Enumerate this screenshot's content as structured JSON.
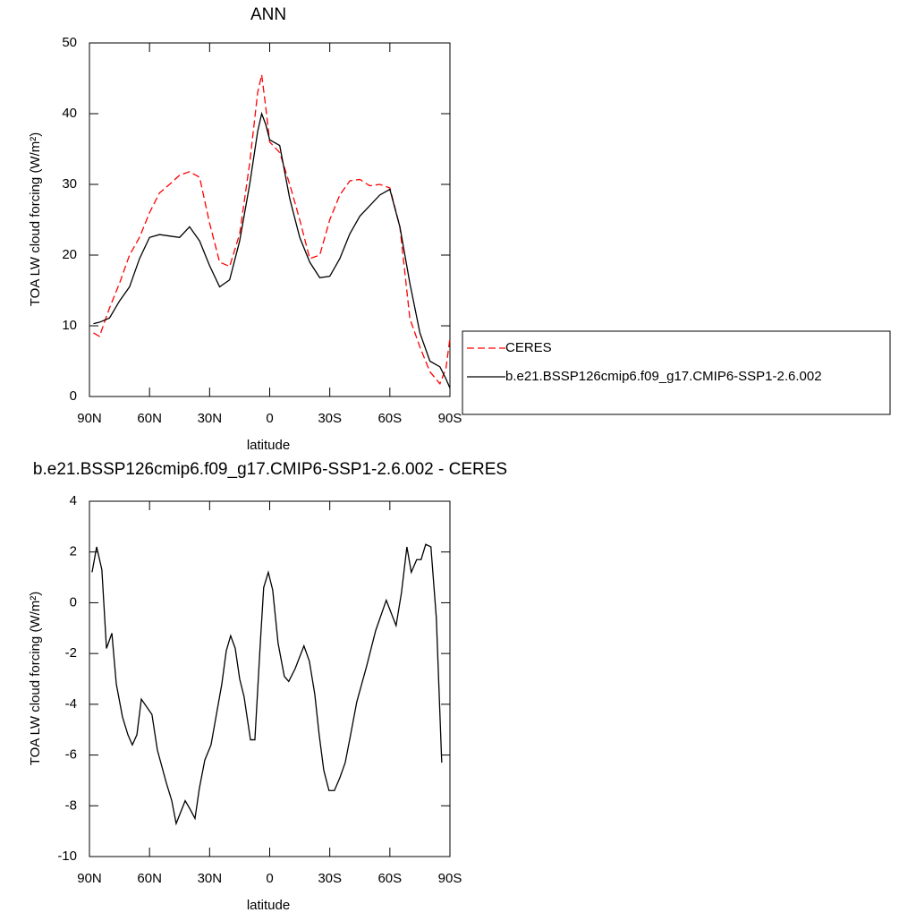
{
  "chart_data": [
    {
      "type": "line",
      "title": "ANN",
      "x_label": "latitude",
      "y_label": "TOA LW cloud forcing (W/m²)",
      "xlim": [
        90,
        -90
      ],
      "xticks": [
        {
          "value": 90,
          "label": "90N"
        },
        {
          "value": 60,
          "label": "60N"
        },
        {
          "value": 30,
          "label": "30N"
        },
        0,
        {
          "value": -30,
          "label": "30S"
        },
        {
          "value": -60,
          "label": "60S"
        },
        {
          "value": -90,
          "label": "90S"
        }
      ],
      "ylim": [
        0,
        50
      ],
      "yticks": [
        0,
        10,
        20,
        30,
        40,
        50
      ],
      "legend": "right",
      "x": [
        88,
        85,
        80,
        75,
        70,
        65,
        60,
        55,
        50,
        45,
        40,
        35,
        30,
        25,
        20,
        15,
        10,
        6,
        4,
        2,
        0,
        -5,
        -10,
        -15,
        -20,
        -25,
        -30,
        -35,
        -40,
        -45,
        -50,
        -55,
        -60,
        -65,
        -70,
        -75,
        -80,
        -85,
        -88,
        -90
      ],
      "series": [
        {
          "name": "CERES",
          "color": "#ff0000",
          "line_style": "dashed",
          "values": [
            9,
            8.5,
            12.5,
            16,
            20,
            22.5,
            26,
            28.8,
            30,
            31.3,
            31.8,
            31,
            24.5,
            19,
            18.4,
            23,
            33,
            43,
            45.5,
            41,
            36,
            34.5,
            30,
            25,
            19.5,
            20,
            25,
            28.5,
            30.5,
            30.7,
            29.8,
            30,
            29.5,
            24,
            11,
            7,
            3.5,
            1.8,
            4,
            8.2
          ]
        },
        {
          "name": "b.e21.BSSP126cmip6.f09_g17.CMIP6-SSP1-2.6.002",
          "color": "#000000",
          "line_style": "solid",
          "values": [
            10.3,
            10.5,
            11.1,
            13.5,
            15.5,
            19.5,
            22.5,
            22.9,
            22.7,
            22.5,
            24,
            22,
            18.5,
            15.5,
            16.5,
            22,
            30,
            37.5,
            40,
            38.5,
            36.3,
            35.5,
            28,
            22.5,
            19,
            16.8,
            17,
            19.5,
            23,
            25.5,
            27,
            28.5,
            29.3,
            24,
            16,
            9,
            5,
            4.2,
            2.5,
            1.2
          ]
        }
      ]
    },
    {
      "type": "line",
      "title": "b.e21.BSSP126cmip6.f09_g17.CMIP6-SSP1-2.6.002 - CERES",
      "x_label": "latitude",
      "y_label": "TOA LW cloud forcing (W/m²)",
      "xlim": [
        90,
        -90
      ],
      "xticks": [
        {
          "value": 90,
          "label": "90N"
        },
        {
          "value": 60,
          "label": "60N"
        },
        {
          "value": 30,
          "label": "30N"
        },
        0,
        {
          "value": -30,
          "label": "30S"
        },
        {
          "value": -60,
          "label": "60S"
        },
        {
          "value": -90,
          "label": "90S"
        }
      ],
      "ylim": [
        -10,
        4
      ],
      "yticks": [
        -10,
        -8,
        -6,
        -4,
        -2,
        0,
        2,
        4
      ],
      "x": [
        88.7,
        86.4,
        83.8,
        81.5,
        78.8,
        76.6,
        73.5,
        70.8,
        68.6,
        66.3,
        64.1,
        58.8,
        56.1,
        51.6,
        48.9,
        46.7,
        42.2,
        40,
        37.3,
        35.1,
        32.4,
        29.3,
        23.9,
        21.7,
        19.5,
        17.2,
        15,
        12.8,
        9.6,
        7.4,
        4.7,
        3,
        0.7,
        -1.5,
        -4.2,
        -7.3,
        -9.5,
        -12.7,
        -17.1,
        -19.8,
        -22.5,
        -24.7,
        -27,
        -29.6,
        -32.3,
        -35,
        -37.7,
        -40.4,
        -43.5,
        -48.4,
        -52.9,
        -58.2,
        -63.1,
        -65.8,
        -68.5,
        -70.7,
        -73.4,
        -75.6,
        -77.9,
        -80.5,
        -83.2,
        -85.9
      ],
      "series": [
        {
          "color": "#000000",
          "line_style": "solid",
          "values": [
            1.2,
            2.2,
            1.3,
            -1.8,
            -1.2,
            -3.2,
            -4.5,
            -5.2,
            -5.6,
            -5.2,
            -3.8,
            -4.4,
            -5.8,
            -7.1,
            -7.8,
            -8.7,
            -7.8,
            -8.1,
            -8.5,
            -7.3,
            -6.2,
            -5.6,
            -3.2,
            -1.9,
            -1.3,
            -1.8,
            -3,
            -3.7,
            -5.4,
            -5.4,
            -1.6,
            0.6,
            1.2,
            0.5,
            -1.6,
            -2.9,
            -3.1,
            -2.6,
            -1.7,
            -2.3,
            -3.6,
            -5.2,
            -6.6,
            -7.4,
            -7.4,
            -6.9,
            -6.3,
            -5.2,
            -3.9,
            -2.5,
            -1.1,
            0.1,
            -0.9,
            0.4,
            2.2,
            1.2,
            1.7,
            1.7,
            2.3,
            2.2,
            -0.6,
            -6.3
          ]
        }
      ]
    }
  ]
}
